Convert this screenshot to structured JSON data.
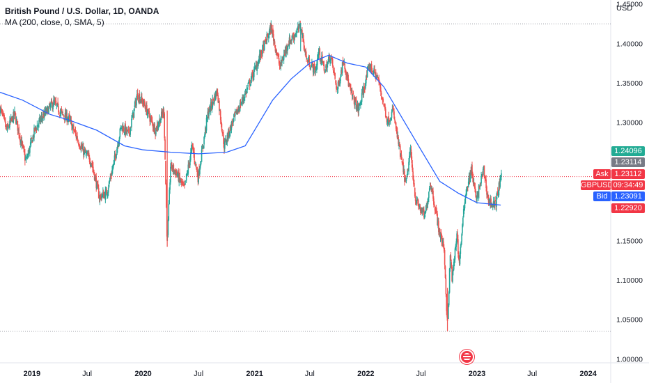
{
  "legend": {
    "title": "British Pound / U.S. Dollar, 1D, OANDA",
    "indicator": "MA (200, close, 0, SMA, 5)"
  },
  "axis": {
    "currency": "USD"
  },
  "price_labels": {
    "top": {
      "value": "1.24096",
      "color": "#22ab94"
    },
    "prev": {
      "value": "1.23114",
      "color": "#787b86"
    },
    "ask": {
      "label": "Ask",
      "value": "1.23112",
      "color": "#f23645"
    },
    "symbol": {
      "label": "GBPUSD",
      "value": "09:34:49",
      "color": "#f23645"
    },
    "bid": {
      "label": "Bid",
      "value": "1.23091",
      "color": "#2962ff"
    },
    "low": {
      "value": "1.22920",
      "color": "#f23645"
    }
  },
  "colors": {
    "up": "#26a69a",
    "down": "#ef5350",
    "ma": "#2962ff",
    "axis_text": "#131722",
    "grid_dots": "#9598a1"
  },
  "event_icon": "us-flag-economic-event-icon",
  "chart_data": {
    "type": "candlestick",
    "title": "British Pound / U.S. Dollar, 1D, OANDA",
    "ylim": [
      0.995,
      1.455
    ],
    "y_ticks": [
      "1.45000",
      "1.40000",
      "1.35000",
      "1.30000",
      "1.15000",
      "1.10000",
      "1.05000",
      "1.00000"
    ],
    "x_ticks": [
      "2019",
      "Jul",
      "2020",
      "Jul",
      "2021",
      "Jul",
      "2022",
      "Jul",
      "2023",
      "Jul",
      "2024"
    ],
    "x_tick_dates": [
      "2019-01-01",
      "2019-07-01",
      "2020-01-01",
      "2020-07-01",
      "2021-01-01",
      "2021-07-01",
      "2022-01-01",
      "2022-07-01",
      "2023-01-01",
      "2023-07-01",
      "2024-01-01"
    ],
    "x_range": [
      "2018-09-18",
      "2024-03-15"
    ],
    "horizontal_lines": [
      1.4248,
      1.0352,
      1.2311
    ],
    "price_path": [
      [
        "2018-09-18",
        1.318
      ],
      [
        "2018-10-10",
        1.29
      ],
      [
        "2018-11-05",
        1.31
      ],
      [
        "2018-12-12",
        1.25
      ],
      [
        "2019-01-10",
        1.29
      ],
      [
        "2019-02-01",
        1.305
      ],
      [
        "2019-03-13",
        1.325
      ],
      [
        "2019-04-10",
        1.31
      ],
      [
        "2019-05-01",
        1.305
      ],
      [
        "2019-06-15",
        1.265
      ],
      [
        "2019-07-15",
        1.25
      ],
      [
        "2019-08-10",
        1.205
      ],
      [
        "2019-09-03",
        1.21
      ],
      [
        "2019-09-25",
        1.245
      ],
      [
        "2019-10-21",
        1.295
      ],
      [
        "2019-11-15",
        1.285
      ],
      [
        "2019-12-13",
        1.335
      ],
      [
        "2020-01-01",
        1.325
      ],
      [
        "2020-02-10",
        1.29
      ],
      [
        "2020-03-09",
        1.315
      ],
      [
        "2020-03-20",
        1.145
      ],
      [
        "2020-03-31",
        1.245
      ],
      [
        "2020-04-20",
        1.235
      ],
      [
        "2020-05-15",
        1.215
      ],
      [
        "2020-06-10",
        1.27
      ],
      [
        "2020-06-29",
        1.23
      ],
      [
        "2020-07-31",
        1.31
      ],
      [
        "2020-08-31",
        1.34
      ],
      [
        "2020-09-23",
        1.27
      ],
      [
        "2020-10-20",
        1.3
      ],
      [
        "2020-11-30",
        1.335
      ],
      [
        "2020-12-31",
        1.365
      ],
      [
        "2021-02-24",
        1.42
      ],
      [
        "2021-03-25",
        1.37
      ],
      [
        "2021-04-20",
        1.4
      ],
      [
        "2021-05-10",
        1.41
      ],
      [
        "2021-06-01",
        1.422
      ],
      [
        "2021-06-20",
        1.38
      ],
      [
        "2021-07-20",
        1.365
      ],
      [
        "2021-07-30",
        1.39
      ],
      [
        "2021-08-20",
        1.365
      ],
      [
        "2021-09-07",
        1.385
      ],
      [
        "2021-09-29",
        1.34
      ],
      [
        "2021-10-20",
        1.38
      ],
      [
        "2021-11-10",
        1.34
      ],
      [
        "2021-12-08",
        1.315
      ],
      [
        "2022-01-13",
        1.372
      ],
      [
        "2022-02-10",
        1.355
      ],
      [
        "2022-03-14",
        1.3
      ],
      [
        "2022-03-31",
        1.315
      ],
      [
        "2022-04-26",
        1.255
      ],
      [
        "2022-05-13",
        1.22
      ],
      [
        "2022-05-27",
        1.265
      ],
      [
        "2022-06-14",
        1.2
      ],
      [
        "2022-07-14",
        1.18
      ],
      [
        "2022-08-01",
        1.225
      ],
      [
        "2022-08-31",
        1.16
      ],
      [
        "2022-09-15",
        1.14
      ],
      [
        "2022-09-26",
        1.038
      ],
      [
        "2022-10-05",
        1.13
      ],
      [
        "2022-10-12",
        1.1
      ],
      [
        "2022-10-27",
        1.16
      ],
      [
        "2022-11-03",
        1.12
      ],
      [
        "2022-11-24",
        1.21
      ],
      [
        "2022-12-14",
        1.24
      ],
      [
        "2022-12-30",
        1.2
      ],
      [
        "2023-01-13",
        1.225
      ],
      [
        "2023-01-23",
        1.24
      ],
      [
        "2023-02-07",
        1.2
      ],
      [
        "2023-03-02",
        1.195
      ],
      [
        "2023-03-14",
        1.218
      ],
      [
        "2023-03-23",
        1.232
      ]
    ],
    "ma_path": [
      [
        "2018-09-18",
        1.338
      ],
      [
        "2018-12-01",
        1.328
      ],
      [
        "2019-03-01",
        1.31
      ],
      [
        "2019-05-01",
        1.303
      ],
      [
        "2019-08-01",
        1.29
      ],
      [
        "2019-11-01",
        1.27
      ],
      [
        "2020-01-01",
        1.265
      ],
      [
        "2020-04-01",
        1.262
      ],
      [
        "2020-07-01",
        1.26
      ],
      [
        "2020-10-01",
        1.262
      ],
      [
        "2020-12-01",
        1.27
      ],
      [
        "2021-01-01",
        1.29
      ],
      [
        "2021-03-01",
        1.328
      ],
      [
        "2021-05-01",
        1.355
      ],
      [
        "2021-07-01",
        1.375
      ],
      [
        "2021-09-01",
        1.385
      ],
      [
        "2021-11-01",
        1.375
      ],
      [
        "2022-01-01",
        1.37
      ],
      [
        "2022-03-01",
        1.345
      ],
      [
        "2022-05-01",
        1.305
      ],
      [
        "2022-07-01",
        1.265
      ],
      [
        "2022-09-01",
        1.225
      ],
      [
        "2022-11-01",
        1.21
      ],
      [
        "2023-01-01",
        1.198
      ],
      [
        "2023-03-20",
        1.195
      ]
    ]
  }
}
